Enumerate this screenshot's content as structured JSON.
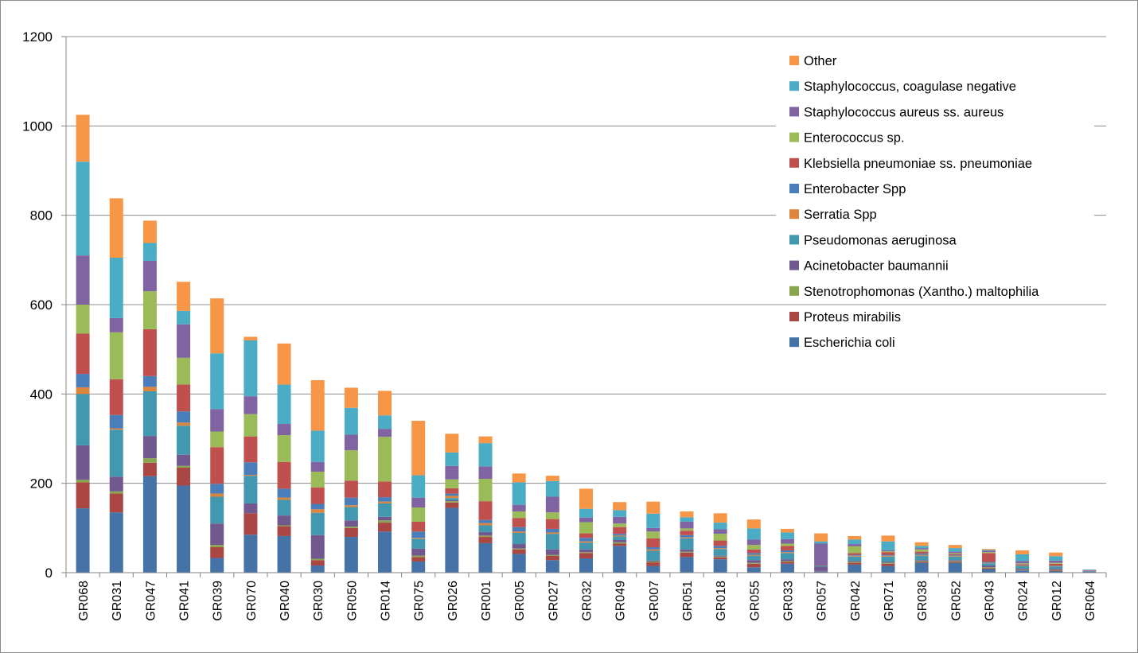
{
  "chart_data": {
    "type": "bar",
    "stacked": true,
    "title": "",
    "xlabel": "",
    "ylabel": "",
    "ylim": [
      0,
      1200
    ],
    "yticks": [
      0,
      200,
      400,
      600,
      800,
      1000,
      1200
    ],
    "grid": "horizontal",
    "legend_position": "right",
    "categories": [
      "GR068",
      "GR031",
      "GR047",
      "GR041",
      "GR039",
      "GR070",
      "GR040",
      "GR030",
      "GR050",
      "GR014",
      "GR075",
      "GR026",
      "GR001",
      "GR005",
      "GR027",
      "GR032",
      "GR049",
      "GR007",
      "GR051",
      "GR018",
      "GR055",
      "GR033",
      "GR057",
      "GR042",
      "GR071",
      "GR038",
      "GR052",
      "GR043",
      "GR024",
      "GR012",
      "GR064"
    ],
    "series": [
      {
        "name": "Escherichia coli",
        "color": "#4572A7",
        "values": [
          144,
          135,
          216,
          195,
          33,
          85,
          82,
          16,
          80,
          92,
          25,
          145,
          66,
          42,
          28,
          32,
          60,
          15,
          35,
          30,
          12,
          20,
          3,
          18,
          15,
          22,
          22,
          8,
          5,
          4,
          2
        ]
      },
      {
        "name": "Proteus mirabilis",
        "color": "#AA4643",
        "values": [
          58,
          42,
          30,
          40,
          24,
          48,
          22,
          12,
          20,
          20,
          10,
          12,
          14,
          10,
          10,
          12,
          5,
          8,
          10,
          4,
          8,
          4,
          1,
          4,
          5,
          2,
          2,
          2,
          1,
          2,
          0
        ]
      },
      {
        "name": "Stenotrophomonas (Xantho.) maltophilia",
        "color": "#89A54E",
        "values": [
          6,
          5,
          10,
          4,
          5,
          0,
          2,
          3,
          3,
          5,
          3,
          3,
          3,
          2,
          2,
          2,
          3,
          2,
          2,
          2,
          2,
          2,
          0,
          2,
          2,
          2,
          2,
          2,
          1,
          1,
          0
        ]
      },
      {
        "name": "Acinetobacter baumannii",
        "color": "#71588F",
        "values": [
          77,
          33,
          50,
          25,
          48,
          22,
          22,
          53,
          14,
          8,
          16,
          2,
          8,
          10,
          12,
          6,
          5,
          2,
          5,
          2,
          6,
          4,
          10,
          2,
          2,
          2,
          2,
          4,
          2,
          2,
          1
        ]
      },
      {
        "name": "Pseudomonas aeruginosa",
        "color": "#4198AF",
        "values": [
          115,
          105,
          100,
          65,
          60,
          62,
          35,
          50,
          30,
          30,
          22,
          5,
          15,
          25,
          35,
          15,
          8,
          22,
          25,
          15,
          10,
          14,
          2,
          10,
          12,
          10,
          8,
          5,
          6,
          5,
          1
        ]
      },
      {
        "name": "Serratia Spp",
        "color": "#DB843D",
        "values": [
          15,
          3,
          10,
          7,
          7,
          2,
          5,
          8,
          4,
          4,
          2,
          5,
          5,
          3,
          3,
          3,
          2,
          3,
          2,
          2,
          2,
          2,
          0,
          2,
          2,
          2,
          2,
          1,
          1,
          1,
          0
        ]
      },
      {
        "name": "Enterobacter Spp",
        "color": "#4A7EBB",
        "values": [
          30,
          30,
          24,
          25,
          22,
          28,
          20,
          12,
          17,
          10,
          14,
          5,
          7,
          10,
          8,
          8,
          4,
          5,
          5,
          5,
          4,
          4,
          0,
          2,
          2,
          3,
          2,
          2,
          1,
          1,
          0
        ]
      },
      {
        "name": "Klebsiella pneumoniae ss. pneumoniae",
        "color": "#C0504D",
        "values": [
          90,
          80,
          105,
          60,
          82,
          58,
          60,
          37,
          38,
          35,
          22,
          12,
          42,
          20,
          22,
          10,
          15,
          20,
          10,
          12,
          8,
          10,
          1,
          4,
          6,
          4,
          2,
          20,
          2,
          4,
          1
        ]
      },
      {
        "name": "Enterococcus sp.",
        "color": "#9BBB59",
        "values": [
          65,
          105,
          85,
          60,
          35,
          50,
          60,
          35,
          68,
          100,
          32,
          20,
          50,
          15,
          15,
          25,
          8,
          15,
          5,
          15,
          10,
          5,
          0,
          15,
          2,
          5,
          2,
          2,
          2,
          2,
          0
        ]
      },
      {
        "name": "Staphylococcus aureus ss. aureus",
        "color": "#8064A2",
        "values": [
          110,
          32,
          68,
          75,
          50,
          40,
          25,
          22,
          35,
          18,
          22,
          30,
          28,
          15,
          35,
          10,
          15,
          8,
          15,
          10,
          12,
          10,
          48,
          5,
          2,
          3,
          3,
          3,
          5,
          5,
          1
        ]
      },
      {
        "name": "Staphylococcus, coagulase negative",
        "color": "#4BACC6",
        "values": [
          210,
          135,
          40,
          30,
          125,
          125,
          88,
          70,
          60,
          30,
          50,
          30,
          52,
          50,
          35,
          20,
          15,
          32,
          10,
          15,
          25,
          15,
          5,
          10,
          20,
          5,
          8,
          2,
          15,
          10,
          1
        ]
      },
      {
        "name": "Other",
        "color": "#F79646",
        "values": [
          105,
          133,
          50,
          65,
          123,
          8,
          92,
          113,
          45,
          55,
          122,
          42,
          15,
          20,
          12,
          45,
          18,
          27,
          13,
          21,
          20,
          8,
          18,
          8,
          13,
          8,
          7,
          2,
          9,
          8,
          0
        ]
      }
    ]
  }
}
